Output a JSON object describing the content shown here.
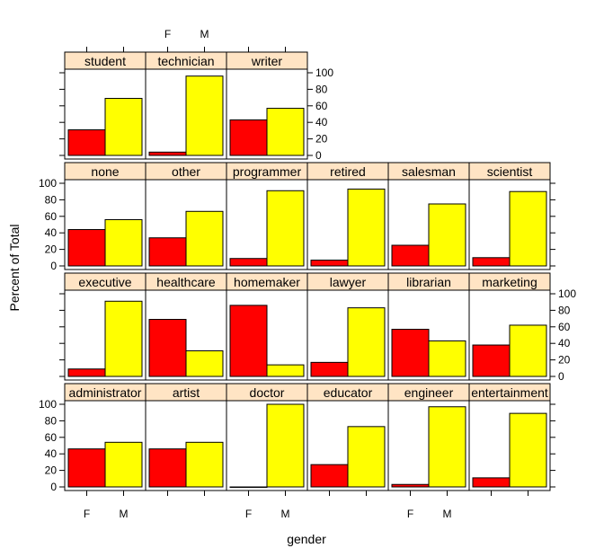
{
  "chart_data": {
    "type": "bar",
    "layout": "lattice 6 columns x 4 rows (bottom row first)",
    "xlabel": "gender",
    "ylabel": "Percent of Total",
    "categories": [
      "F",
      "M"
    ],
    "ylim": [
      0,
      100
    ],
    "yticks": [
      "0",
      "20",
      "40",
      "60",
      "80",
      "100"
    ],
    "colors": {
      "F": "#ff0000",
      "M": "#ffff00",
      "strip": "#ffe4c4",
      "frame": "#000000"
    },
    "panels": [
      {
        "label": "administrator",
        "row": 0,
        "col": 0,
        "values": [
          46,
          54
        ]
      },
      {
        "label": "artist",
        "row": 0,
        "col": 1,
        "values": [
          46,
          54
        ]
      },
      {
        "label": "doctor",
        "row": 0,
        "col": 2,
        "values": [
          0,
          100
        ]
      },
      {
        "label": "educator",
        "row": 0,
        "col": 3,
        "values": [
          27,
          73
        ]
      },
      {
        "label": "engineer",
        "row": 0,
        "col": 4,
        "values": [
          3,
          97
        ]
      },
      {
        "label": "entertainment",
        "row": 0,
        "col": 5,
        "values": [
          11,
          89
        ]
      },
      {
        "label": "executive",
        "row": 1,
        "col": 0,
        "values": [
          9,
          91
        ]
      },
      {
        "label": "healthcare",
        "row": 1,
        "col": 1,
        "values": [
          69,
          31
        ]
      },
      {
        "label": "homemaker",
        "row": 1,
        "col": 2,
        "values": [
          86,
          14
        ]
      },
      {
        "label": "lawyer",
        "row": 1,
        "col": 3,
        "values": [
          17,
          83
        ]
      },
      {
        "label": "librarian",
        "row": 1,
        "col": 4,
        "values": [
          57,
          43
        ]
      },
      {
        "label": "marketing",
        "row": 1,
        "col": 5,
        "values": [
          38,
          62
        ]
      },
      {
        "label": "none",
        "row": 2,
        "col": 0,
        "values": [
          44,
          56
        ]
      },
      {
        "label": "other",
        "row": 2,
        "col": 1,
        "values": [
          34,
          66
        ]
      },
      {
        "label": "programmer",
        "row": 2,
        "col": 2,
        "values": [
          9,
          91
        ]
      },
      {
        "label": "retired",
        "row": 2,
        "col": 3,
        "values": [
          7,
          93
        ]
      },
      {
        "label": "salesman",
        "row": 2,
        "col": 4,
        "values": [
          25,
          75
        ]
      },
      {
        "label": "scientist",
        "row": 2,
        "col": 5,
        "values": [
          10,
          90
        ]
      },
      {
        "label": "student",
        "row": 3,
        "col": 0,
        "values": [
          31,
          69
        ]
      },
      {
        "label": "technician",
        "row": 3,
        "col": 1,
        "values": [
          4,
          96
        ]
      },
      {
        "label": "writer",
        "row": 3,
        "col": 2,
        "values": [
          43,
          57
        ]
      }
    ]
  }
}
